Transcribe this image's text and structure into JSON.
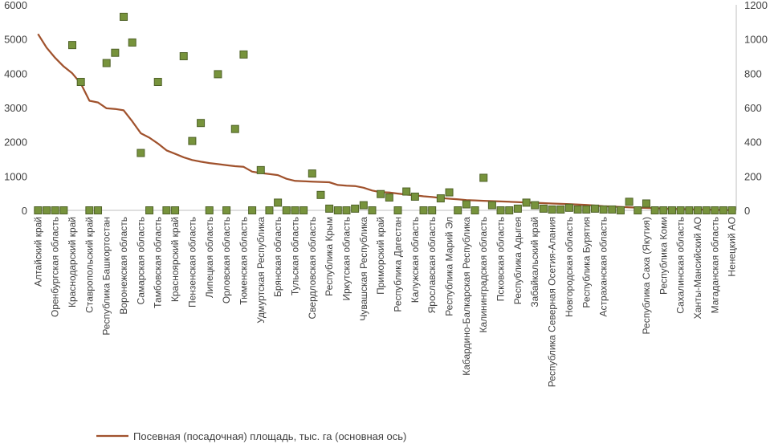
{
  "chart_data": {
    "type": "line",
    "categories": [
      "Алтайский край",
      "",
      "Оренбургская область",
      "",
      "Краснодарский край",
      "",
      "Ставропольский край",
      "",
      "Республика Башкортостан",
      "",
      "Воронежская область",
      "",
      "Самарская область",
      "",
      "Тамбовская область",
      "",
      "Красноярский край",
      "",
      "Пензенская область",
      "",
      "Липецкая область",
      "",
      "Орловская область",
      "",
      "Тюменская область",
      "",
      "Удмуртская Республика",
      "",
      "Брянская область",
      "",
      "Тульская область",
      "",
      "Свердловская область",
      "",
      "Республика Крым",
      "",
      "Иркутская область",
      "",
      "Чувашская Республика",
      "",
      "Приморский край",
      "",
      "Республика Дагестан",
      "",
      "Калужская область",
      "",
      "Ярославская область",
      "",
      "Республика Марий Эл",
      "",
      "Кабардино-Балкарская Республика",
      "",
      "Калининградская область",
      "",
      "Псковская область",
      "",
      "Республика Адыгея",
      "",
      "Забайкальский край",
      "",
      "Республика Северная  Осетия-Алания",
      "",
      "Новгородская область",
      "",
      "Республика Бурятия",
      "",
      "Астраханская область",
      "",
      "",
      "",
      "",
      "Республика Саха (Якутия)",
      "",
      "Республика Коми",
      "",
      "Сахалинская область",
      "",
      "Ханты-Мансийский АО",
      "",
      "Магаданская область",
      "",
      "Ненецкий АО"
    ],
    "series": [
      {
        "name": "Посевная (посадочная) площадь, тыс. га (основная ось)",
        "axis": "primary",
        "color": "#a0522d",
        "values": [
          5150,
          4750,
          4450,
          4200,
          4000,
          3700,
          3200,
          3150,
          2980,
          2960,
          2920,
          2600,
          2250,
          2120,
          1950,
          1750,
          1650,
          1550,
          1470,
          1420,
          1380,
          1350,
          1320,
          1290,
          1270,
          1130,
          1090,
          1060,
          1030,
          920,
          860,
          850,
          840,
          830,
          820,
          740,
          720,
          710,
          660,
          580,
          530,
          520,
          490,
          460,
          440,
          410,
          390,
          360,
          340,
          320,
          300,
          290,
          280,
          270,
          260,
          250,
          240,
          230,
          220,
          210,
          200,
          190,
          180,
          170,
          160,
          140,
          120,
          110,
          100,
          90,
          80,
          70,
          60,
          50,
          45,
          40,
          30,
          25,
          20,
          15,
          10,
          5
        ]
      },
      {
        "name": "",
        "axis": "secondary",
        "type": "scatter",
        "color": "#77933c",
        "values": [
          0,
          0,
          0,
          0,
          965,
          750,
          0,
          0,
          860,
          920,
          1130,
          980,
          335,
          0,
          750,
          0,
          0,
          900,
          405,
          510,
          0,
          795,
          0,
          475,
          910,
          0,
          235,
          0,
          45,
          0,
          0,
          0,
          215,
          90,
          10,
          0,
          0,
          10,
          30,
          0,
          95,
          75,
          0,
          110,
          80,
          0,
          0,
          70,
          105,
          0,
          35,
          0,
          190,
          30,
          0,
          0,
          10,
          45,
          30,
          10,
          5,
          5,
          15,
          5,
          5,
          10,
          5,
          5,
          0,
          50,
          0,
          40,
          0,
          0,
          0,
          0,
          0,
          0,
          0,
          0,
          0,
          0
        ]
      }
    ],
    "ylim": [
      0,
      6000
    ],
    "y2lim": [
      0,
      1200
    ],
    "yticks": [
      "0",
      "1000",
      "2000",
      "3000",
      "4000",
      "5000",
      "6000"
    ],
    "y2ticks": [
      "0",
      "200",
      "400",
      "600",
      "800",
      "1000",
      "1200"
    ],
    "grid": false,
    "legend_position": "bottom"
  }
}
